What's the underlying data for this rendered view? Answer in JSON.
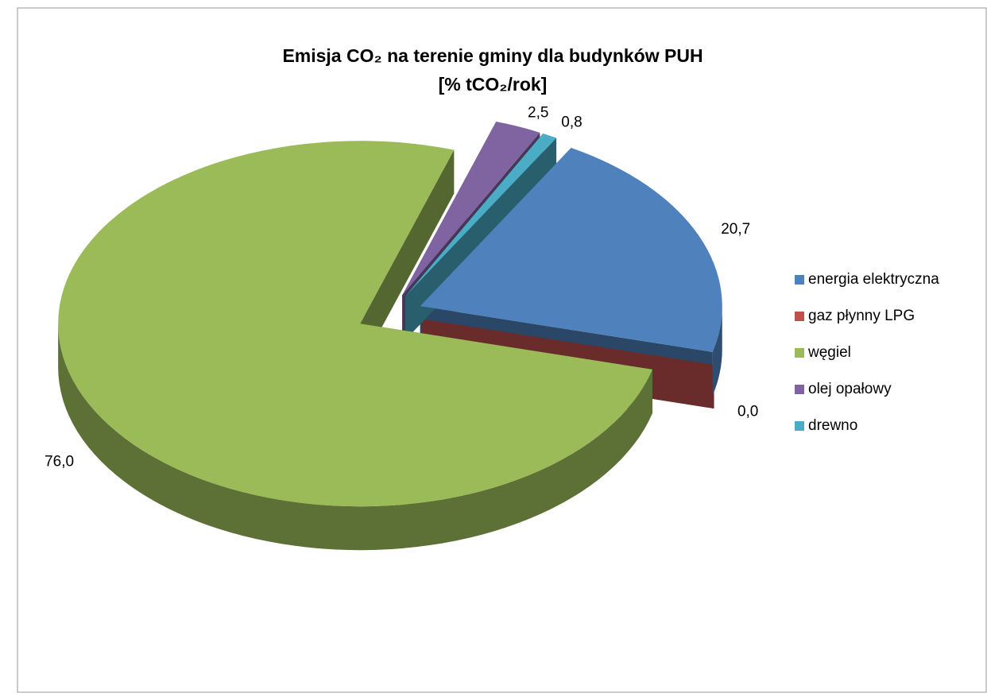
{
  "chart_data": {
    "type": "pie",
    "title": "Emisja CO₂ na terenie gminy dla budynków PUH",
    "subtitle": "[% tCO₂/rok]",
    "categories": [
      "energia elektryczna",
      "gaz płynny LPG",
      "węgiel",
      "olej opałowy",
      "drewno"
    ],
    "values": [
      20.7,
      0.0,
      76.0,
      2.5,
      0.8
    ],
    "value_labels": [
      "20,7",
      "0,0",
      "76,0",
      "2,5",
      "0,8"
    ],
    "colors": [
      "#4f81bd",
      "#c0504d",
      "#9bbb59",
      "#8064a2",
      "#4bacc6"
    ],
    "legend": "right"
  }
}
